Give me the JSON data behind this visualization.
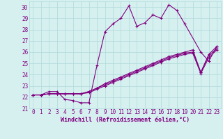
{
  "xlabel": "Windchill (Refroidissement éolien,°C)",
  "background_color": "#d6f0f0",
  "grid_color": "#b0d8d8",
  "line_color": "#800080",
  "series1": [
    22.2,
    22.2,
    22.5,
    22.5,
    21.8,
    21.7,
    21.5,
    21.5,
    24.8,
    27.8,
    28.5,
    29.0,
    30.1,
    28.3,
    28.6,
    29.3,
    29.0,
    30.2,
    29.7,
    28.5,
    null,
    26.0,
    25.2,
    26.5
  ],
  "series2": [
    22.2,
    22.2,
    22.3,
    22.3,
    22.3,
    22.3,
    22.3,
    22.5,
    22.8,
    23.2,
    23.5,
    23.8,
    24.1,
    24.4,
    24.7,
    25.0,
    25.3,
    25.6,
    25.8,
    26.0,
    26.2,
    24.2,
    25.8,
    26.5
  ],
  "series3": [
    22.2,
    22.2,
    22.3,
    22.3,
    22.3,
    22.3,
    22.3,
    22.5,
    22.8,
    23.1,
    23.4,
    23.7,
    24.0,
    24.3,
    24.6,
    24.9,
    25.2,
    25.5,
    25.7,
    25.9,
    26.0,
    24.2,
    25.7,
    26.3
  ],
  "series4": [
    22.2,
    22.2,
    22.3,
    22.3,
    22.3,
    22.3,
    22.3,
    22.4,
    22.7,
    23.0,
    23.3,
    23.6,
    23.9,
    24.2,
    24.5,
    24.8,
    25.1,
    25.4,
    25.6,
    25.8,
    25.9,
    24.1,
    25.5,
    26.2
  ],
  "ylim": [
    21,
    30.5
  ],
  "yticks": [
    21,
    22,
    23,
    24,
    25,
    26,
    27,
    28,
    29,
    30
  ],
  "xlim": [
    -0.5,
    23.5
  ],
  "xtick_labels": [
    "0",
    "1",
    "2",
    "3",
    "4",
    "5",
    "6",
    "7",
    "8",
    "9",
    "10",
    "11",
    "12",
    "13",
    "14",
    "15",
    "16",
    "17",
    "18",
    "19",
    "20",
    "21",
    "22",
    "23"
  ],
  "font_color": "#800080",
  "marker": "+",
  "markersize": 3,
  "linewidth": 0.8,
  "tick_fontsize": 5.5,
  "xlabel_fontsize": 6.0
}
